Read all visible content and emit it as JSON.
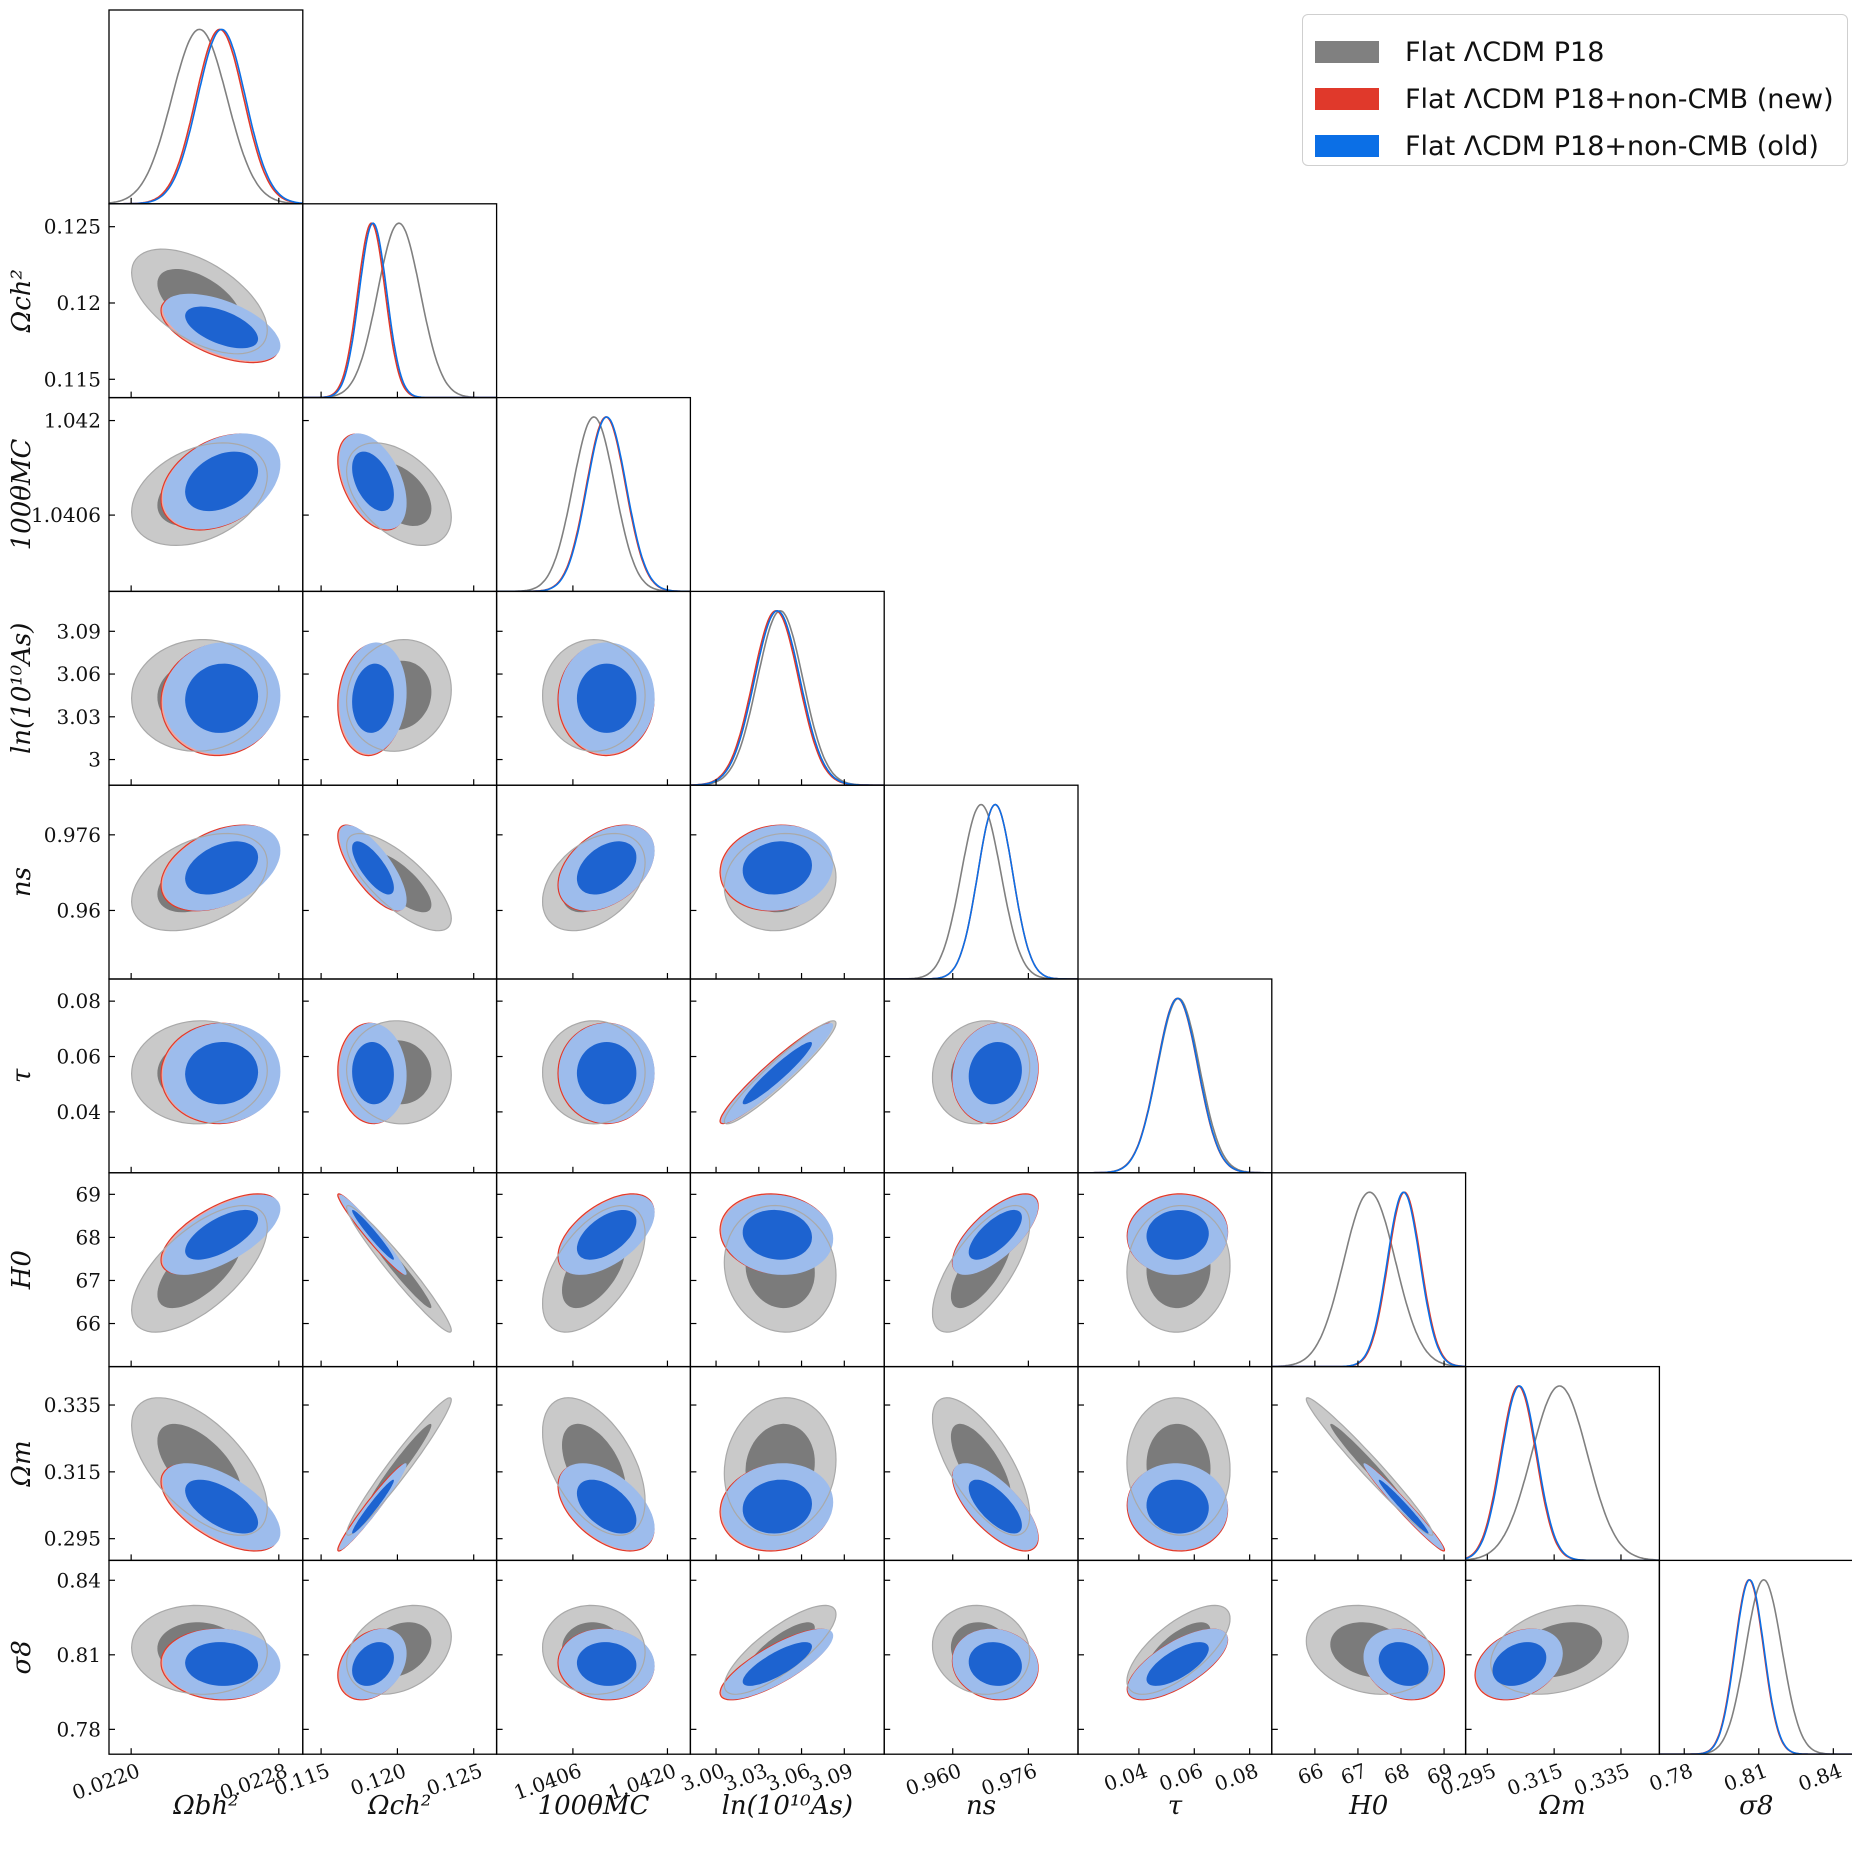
{
  "legend": {
    "items": [
      {
        "label": "Flat ΛCDM P18",
        "color": "#808080"
      },
      {
        "label": "Flat ΛCDM P18+non-CMB (new)",
        "color": "#e0392b"
      },
      {
        "label": "Flat ΛCDM P18+non-CMB (old)",
        "color": "#0b6fe6"
      }
    ]
  },
  "chart_data": {
    "type": "corner",
    "contour_levels": [
      "68%",
      "95%"
    ],
    "colors": {
      "p18_outer": "#c9c9c9",
      "p18_inner": "#7b7b7b",
      "p18_line": "#808080",
      "new_outer": "#f2a79e",
      "new_line": "#e0392b",
      "old_outer": "#9dbcec",
      "old_inner": "#1d63d0",
      "old_line": "#0b6fe6"
    },
    "params": [
      {
        "label": "Ωbh²",
        "range": [
          0.02188,
          0.02293
        ],
        "ticks": [
          0.022,
          0.0228
        ],
        "tick_labels": [
          "0.0220",
          "0.0228"
        ],
        "means": [
          0.02237,
          0.02248,
          0.02249
        ],
        "sigmas": [
          0.00015,
          0.00013,
          0.00013
        ]
      },
      {
        "label": "Ωch²",
        "range": [
          0.1138,
          0.1265
        ],
        "ticks": [
          0.115,
          0.12,
          0.125
        ],
        "tick_labels": [
          "0.115",
          "0.120",
          "0.125"
        ],
        "y_tick_labels": [
          "0.115",
          "0.12",
          "0.125"
        ],
        "means": [
          0.1201,
          0.1183,
          0.1184
        ],
        "sigmas": [
          0.0014,
          0.0009,
          0.0009
        ]
      },
      {
        "label": "100θMC",
        "range": [
          1.03947,
          1.04234
        ],
        "ticks": [
          1.0406,
          1.042
        ],
        "tick_labels": [
          "1.0406",
          "1.0420"
        ],
        "y_ticks": [
          1.0406,
          1.042
        ],
        "y_tick_labels": [
          "1.0406",
          "1.042"
        ],
        "means": [
          1.04091,
          1.04109,
          1.0411
        ],
        "sigmas": [
          0.00031,
          0.00029,
          0.00029
        ]
      },
      {
        "label": "ln(10¹⁰As)",
        "range": [
          2.982,
          3.118
        ],
        "ticks": [
          3.0,
          3.03,
          3.06,
          3.09
        ],
        "tick_labels": [
          "3.00",
          "3.03",
          "3.06",
          "3.09"
        ],
        "y_tick_labels": [
          "3",
          "3.03",
          "3.06",
          "3.09"
        ],
        "means": [
          3.045,
          3.042,
          3.043
        ],
        "sigmas": [
          0.016,
          0.016,
          0.016
        ]
      },
      {
        "label": "ns",
        "range": [
          0.9455,
          0.9865
        ],
        "ticks": [
          0.96,
          0.976
        ],
        "tick_labels": [
          "0.960",
          "0.976"
        ],
        "y_tick_labels": [
          "0.96",
          "0.976"
        ],
        "means": [
          0.966,
          0.969,
          0.969
        ],
        "sigmas": [
          0.0042,
          0.0037,
          0.0037
        ]
      },
      {
        "label": "τ",
        "range": [
          0.018,
          0.088
        ],
        "ticks": [
          0.04,
          0.06,
          0.08
        ],
        "tick_labels": [
          "0.04",
          "0.06",
          "0.08"
        ],
        "means": [
          0.0543,
          0.0539,
          0.054
        ],
        "sigmas": [
          0.0076,
          0.0074,
          0.0074
        ]
      },
      {
        "label": "H0",
        "range": [
          65.0,
          69.5
        ],
        "ticks": [
          66,
          67,
          68,
          69
        ],
        "tick_labels": [
          "66",
          "67",
          "68",
          "69"
        ],
        "means": [
          67.27,
          68.08,
          68.06
        ],
        "sigmas": [
          0.6,
          0.38,
          0.38
        ]
      },
      {
        "label": "Ωm",
        "range": [
          0.2885,
          0.3465
        ],
        "ticks": [
          0.295,
          0.315,
          0.335
        ],
        "tick_labels": [
          "0.295",
          "0.315",
          "0.335"
        ],
        "means": [
          0.3166,
          0.3043,
          0.3046
        ],
        "sigmas": [
          0.0084,
          0.0053,
          0.0053
        ]
      },
      {
        "label": "σ8",
        "range": [
          0.77,
          0.848
        ],
        "ticks": [
          0.78,
          0.81,
          0.84
        ],
        "tick_labels": [
          "0.78",
          "0.81",
          "0.84"
        ],
        "means": [
          0.812,
          0.8061,
          0.8063
        ],
        "sigmas": [
          0.0073,
          0.0058,
          0.0058
        ]
      }
    ]
  }
}
